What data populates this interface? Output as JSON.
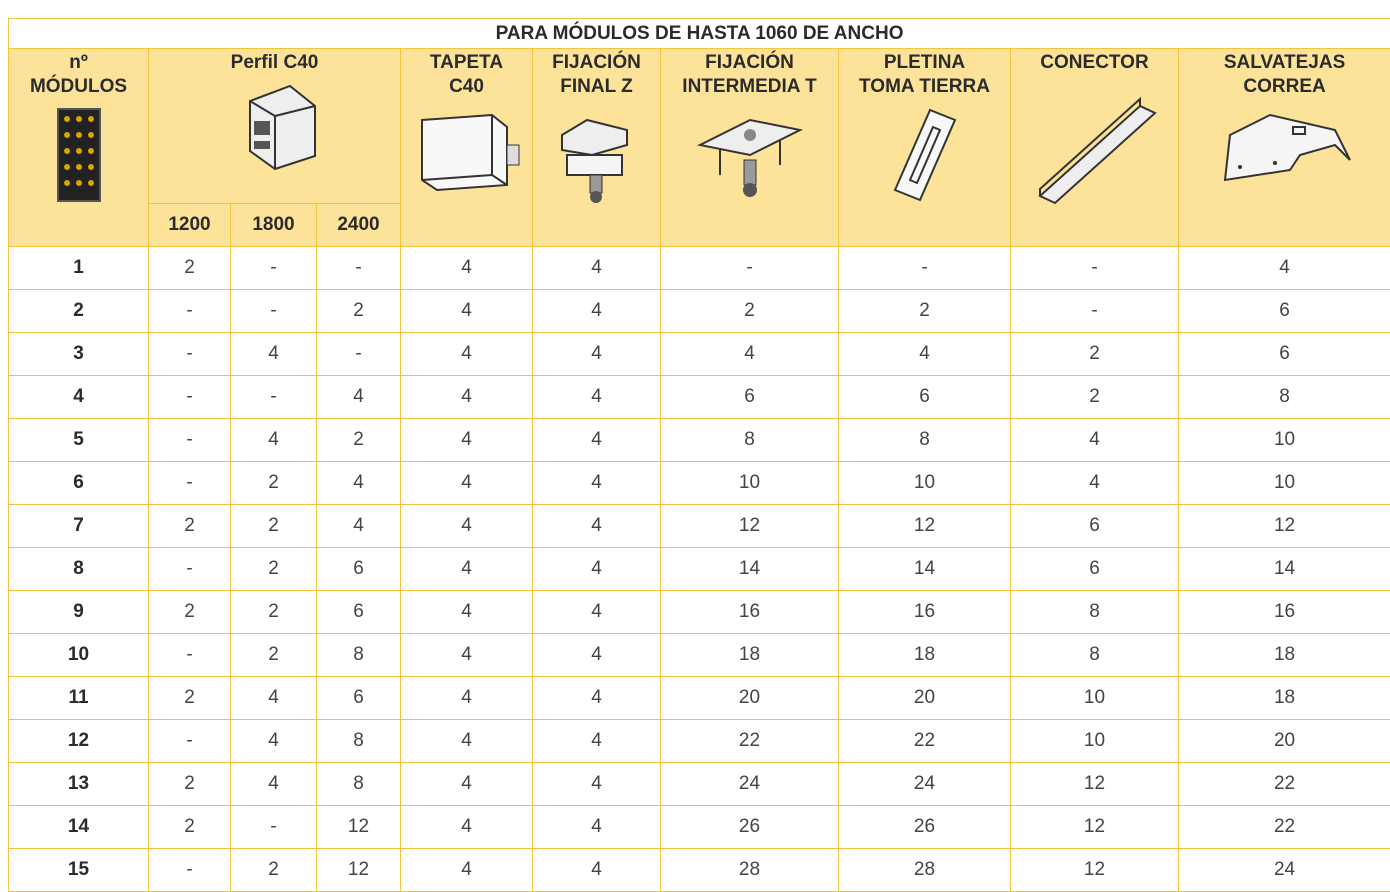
{
  "table": {
    "title": "PARA MÓDULOS DE HASTA 1060 DE ANCHO",
    "headers": [
      [
        "nº",
        "MÓDULOS"
      ],
      [
        "Perfil C40"
      ],
      [
        "TAPETA",
        "C40"
      ],
      [
        "FIJACIÓN",
        "FINAL Z"
      ],
      [
        "FIJACIÓN",
        "INTERMEDIA T"
      ],
      [
        "PLETINA",
        "TOMA TIERRA"
      ],
      [
        "CONECTOR"
      ],
      [
        "SALVATEJAS",
        "CORREA"
      ]
    ],
    "subheaders": [
      "1200",
      "1800",
      "2400"
    ],
    "rows": [
      [
        "1",
        "2",
        "-",
        "-",
        "4",
        "4",
        "-",
        "-",
        "-",
        "4"
      ],
      [
        "2",
        "-",
        "-",
        "2",
        "4",
        "4",
        "2",
        "2",
        "-",
        "6"
      ],
      [
        "3",
        "-",
        "4",
        "-",
        "4",
        "4",
        "4",
        "4",
        "2",
        "6"
      ],
      [
        "4",
        "-",
        "-",
        "4",
        "4",
        "4",
        "6",
        "6",
        "2",
        "8"
      ],
      [
        "5",
        "-",
        "4",
        "2",
        "4",
        "4",
        "8",
        "8",
        "4",
        "10"
      ],
      [
        "6",
        "-",
        "2",
        "4",
        "4",
        "4",
        "10",
        "10",
        "4",
        "10"
      ],
      [
        "7",
        "2",
        "2",
        "4",
        "4",
        "4",
        "12",
        "12",
        "6",
        "12"
      ],
      [
        "8",
        "-",
        "2",
        "6",
        "4",
        "4",
        "14",
        "14",
        "6",
        "14"
      ],
      [
        "9",
        "2",
        "2",
        "6",
        "4",
        "4",
        "16",
        "16",
        "8",
        "16"
      ],
      [
        "10",
        "-",
        "2",
        "8",
        "4",
        "4",
        "18",
        "18",
        "8",
        "18"
      ],
      [
        "11",
        "2",
        "4",
        "6",
        "4",
        "4",
        "20",
        "20",
        "10",
        "18"
      ],
      [
        "12",
        "-",
        "4",
        "8",
        "4",
        "4",
        "22",
        "22",
        "10",
        "20"
      ],
      [
        "13",
        "2",
        "4",
        "8",
        "4",
        "4",
        "24",
        "24",
        "12",
        "22"
      ],
      [
        "14",
        "2",
        "-",
        "12",
        "4",
        "4",
        "26",
        "26",
        "12",
        "22"
      ],
      [
        "15",
        "-",
        "2",
        "12",
        "4",
        "4",
        "28",
        "28",
        "12",
        "24"
      ]
    ]
  }
}
